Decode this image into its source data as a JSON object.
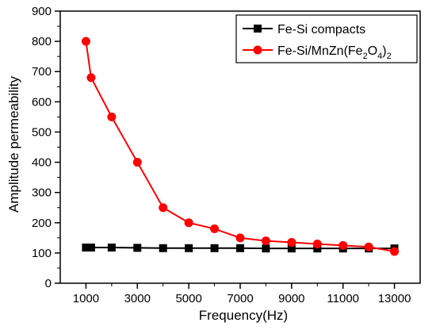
{
  "chart_data": {
    "type": "line",
    "xlabel": "Frequency(Hz)",
    "ylabel": "Amplitude permeability",
    "xlim": [
      0,
      14000
    ],
    "ylim": [
      0,
      900
    ],
    "x_ticks": [
      1000,
      3000,
      5000,
      7000,
      9000,
      11000,
      13000
    ],
    "x_tick_labels": [
      "1000",
      "3000",
      "5000",
      "7000",
      "9000",
      "11000",
      "13000"
    ],
    "y_ticks": [
      0,
      100,
      200,
      300,
      400,
      500,
      600,
      700,
      800,
      900
    ],
    "y_tick_labels": [
      "0",
      "100",
      "200",
      "300",
      "400",
      "500",
      "600",
      "700",
      "800",
      "900"
    ],
    "grid": false,
    "legend_position": "top-right",
    "series": [
      {
        "name": "Fe-Si compacts",
        "color": "#000000",
        "marker": "square",
        "x": [
          1000,
          1200,
          2000,
          3000,
          4000,
          5000,
          6000,
          7000,
          8000,
          9000,
          10000,
          11000,
          12000,
          13000
        ],
        "y": [
          118,
          118,
          118,
          117,
          116,
          116,
          116,
          116,
          115,
          115,
          115,
          115,
          115,
          115
        ]
      },
      {
        "name": "Fe-Si/MnZn(Fe2O4)2",
        "color": "#ff0000",
        "marker": "circle",
        "x": [
          1000,
          1200,
          2000,
          3000,
          4000,
          5000,
          6000,
          7000,
          8000,
          9000,
          10000,
          11000,
          12000,
          13000
        ],
        "y": [
          800,
          680,
          550,
          400,
          250,
          200,
          180,
          150,
          140,
          135,
          130,
          125,
          120,
          105
        ]
      }
    ],
    "legend_labels": [
      {
        "base": "Fe-Si compacts",
        "parts": []
      },
      {
        "base": "Fe-Si/MnZn(Fe",
        "parts": [
          [
            "2",
            "sub"
          ],
          [
            "O",
            "normal"
          ],
          [
            "4",
            "sub"
          ],
          [
            ")",
            "normal"
          ],
          [
            "2",
            "sub"
          ]
        ]
      }
    ]
  }
}
